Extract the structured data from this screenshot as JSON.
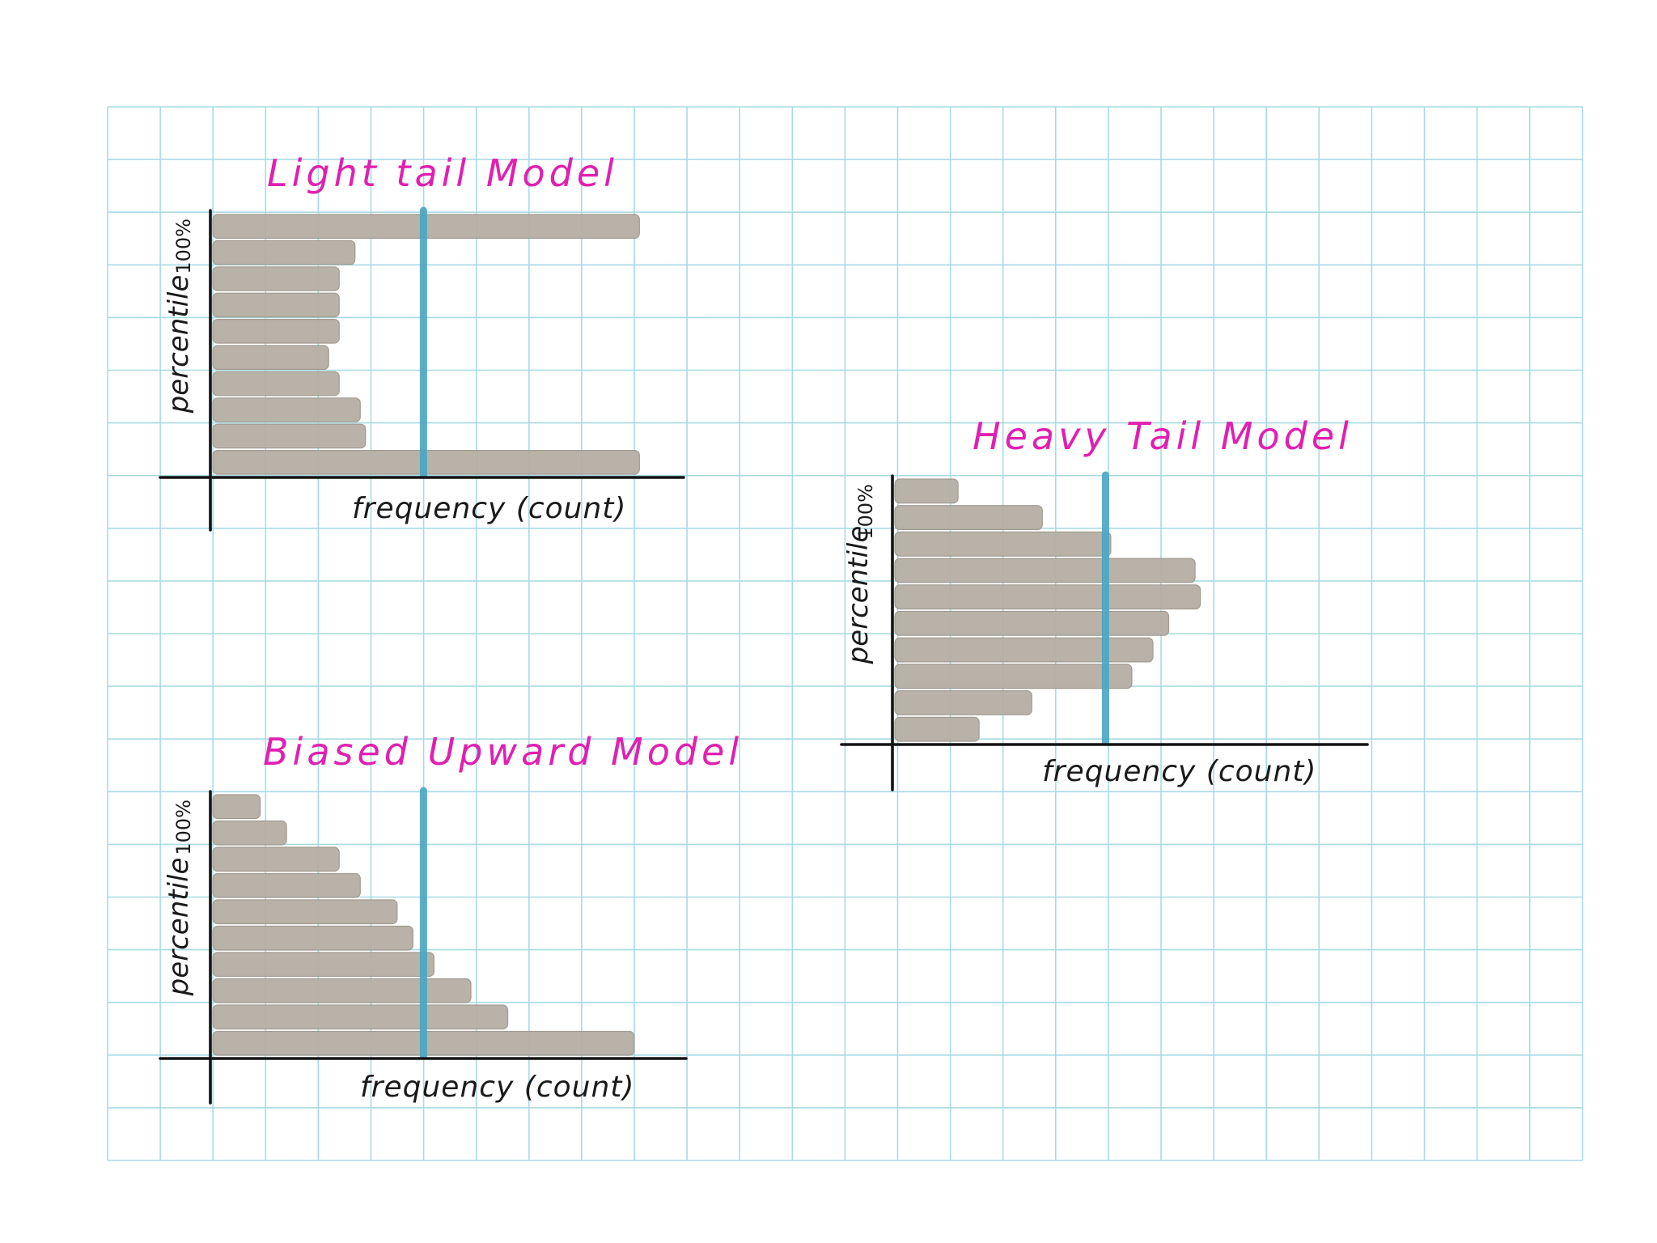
{
  "colors": {
    "grid": "#a8dbe4",
    "bar": "#b6b0a6",
    "bar_edge": "#9e988e",
    "marker": "#4aa6c4",
    "axis": "#141414",
    "title": "#e020b0",
    "label": "#1a1a1a"
  },
  "chart_data": [
    {
      "type": "bar",
      "orientation": "horizontal",
      "title": "Light tail Model",
      "xlabel": "frequency (count)",
      "ylabel": "percentile",
      "y_tick_label": "100%",
      "categories": [
        "1",
        "2",
        "3",
        "4",
        "5",
        "6",
        "7",
        "8",
        "9",
        "10"
      ],
      "values": [
        8.1,
        2.9,
        2.8,
        2.4,
        2.2,
        2.4,
        2.4,
        2.4,
        2.7,
        8.1
      ],
      "reference_line": 4,
      "xlim": [
        0,
        9
      ],
      "grid": true
    },
    {
      "type": "bar",
      "orientation": "horizontal",
      "title": "Biased Upward Model",
      "xlabel": "frequency (count)",
      "ylabel": "percentile",
      "y_tick_label": "100%",
      "categories": [
        "1",
        "2",
        "3",
        "4",
        "5",
        "6",
        "7",
        "8",
        "9",
        "10"
      ],
      "values": [
        8.0,
        5.6,
        4.9,
        4.2,
        3.8,
        3.5,
        2.8,
        2.4,
        1.4,
        0.9
      ],
      "reference_line": 4,
      "xlim": [
        0,
        9
      ],
      "grid": true
    },
    {
      "type": "bar",
      "orientation": "horizontal",
      "title": "Heavy Tail Model",
      "xlabel": "frequency (count)",
      "ylabel": "percentile",
      "y_tick_label": "100%",
      "categories": [
        "1",
        "2",
        "3",
        "4",
        "5",
        "6",
        "7",
        "8",
        "9",
        "10"
      ],
      "values": [
        1.6,
        2.6,
        4.5,
        4.9,
        5.2,
        5.8,
        5.7,
        4.1,
        2.8,
        1.2
      ],
      "reference_line": 4,
      "xlim": [
        0,
        9
      ],
      "grid": true
    }
  ]
}
